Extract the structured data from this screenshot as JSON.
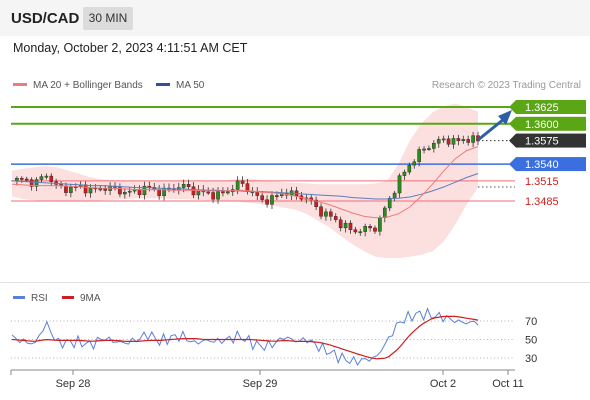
{
  "header": {
    "symbol": "USD/CAD",
    "interval": "30 MIN"
  },
  "datetime": "Monday, October 2, 2023 4:11:51 AM CET",
  "legend": {
    "ma20": "MA 20 + Bollinger Bands",
    "ma50": "MA 50",
    "credit": "Research © 2023 Trading Central"
  },
  "rsi_legend": {
    "rsi": "RSI",
    "ma": "9MA"
  },
  "colors": {
    "resistance": "#5ba614",
    "support": "#f06e78",
    "pivot": "#3b6fe0",
    "current": "#333333",
    "candle_up": "#2e8b1e",
    "candle_down": "#cc2020",
    "ma20": "#f07a7a",
    "ma50": "#5b7fbf",
    "bollinger_fill": "#fbd4d4",
    "arrow": "#2e5fa5",
    "rsi": "#5b7fdb",
    "rsi_ma": "#cc1f1f"
  },
  "chart_data": [
    {
      "type": "candlestick",
      "title": "USD/CAD",
      "x_labels": [
        "Sep 28",
        "Sep 29",
        "Oct 2",
        "Oct 11"
      ],
      "levels": [
        {
          "label": "1.3625",
          "value": 1.3625,
          "kind": "resistance"
        },
        {
          "label": "1.3600",
          "value": 1.36,
          "kind": "resistance"
        },
        {
          "label": "1.3575",
          "value": 1.3575,
          "kind": "current"
        },
        {
          "label": "1.3540",
          "value": 1.354,
          "kind": "pivot"
        },
        {
          "label": "1.3515",
          "value": 1.3515,
          "kind": "support"
        },
        {
          "label": "1.3485",
          "value": 1.3485,
          "kind": "support"
        }
      ],
      "price_path": [
        1.3515,
        1.3517,
        1.3511,
        1.3525,
        1.3505,
        1.3503,
        1.3507,
        1.35,
        1.3505,
        1.3503,
        1.3497,
        1.35,
        1.3505,
        1.3498,
        1.3503,
        1.3508,
        1.35,
        1.3497,
        1.3493,
        1.35,
        1.3513,
        1.35,
        1.3485,
        1.3489,
        1.35,
        1.3492,
        1.349,
        1.347,
        1.3462,
        1.345,
        1.344,
        1.3443,
        1.3445,
        1.348,
        1.3515,
        1.354,
        1.356,
        1.357,
        1.3577,
        1.3573,
        1.3578,
        1.3575
      ],
      "ma20": [
        1.351,
        1.3509,
        1.3508,
        1.3508,
        1.3508,
        1.3507,
        1.3506,
        1.3505,
        1.3504,
        1.3504,
        1.3503,
        1.3502,
        1.3502,
        1.3502,
        1.3501,
        1.3501,
        1.3501,
        1.35,
        1.35,
        1.35,
        1.3501,
        1.35,
        1.3498,
        1.3497,
        1.3495,
        1.3492,
        1.3488,
        1.3484,
        1.3479,
        1.3473,
        1.3467,
        1.3462,
        1.346,
        1.3461,
        1.3466,
        1.3476,
        1.3492,
        1.351,
        1.353,
        1.3548,
        1.356,
        1.3566
      ],
      "ma50": [
        1.3515,
        1.3514,
        1.3513,
        1.3512,
        1.3511,
        1.351,
        1.3509,
        1.3508,
        1.3508,
        1.3507,
        1.3506,
        1.3505,
        1.3505,
        1.3504,
        1.3503,
        1.3503,
        1.3502,
        1.3501,
        1.3501,
        1.35,
        1.35,
        1.3499,
        1.3499,
        1.3498,
        1.3497,
        1.3496,
        1.3495,
        1.3494,
        1.3493,
        1.3492,
        1.349,
        1.3489,
        1.3488,
        1.3488,
        1.3489,
        1.3491,
        1.3495,
        1.35,
        1.3506,
        1.3513,
        1.352,
        1.3526
      ],
      "bollinger_upper": [
        1.353,
        1.3533,
        1.3535,
        1.3537,
        1.3535,
        1.353,
        1.3525,
        1.352,
        1.3517,
        1.3516,
        1.3515,
        1.3515,
        1.3515,
        1.3515,
        1.3515,
        1.3515,
        1.3515,
        1.3515,
        1.3515,
        1.3516,
        1.3518,
        1.3518,
        1.3516,
        1.3515,
        1.3513,
        1.3512,
        1.3511,
        1.351,
        1.351,
        1.351,
        1.351,
        1.351,
        1.3511,
        1.3515,
        1.354,
        1.3575,
        1.36,
        1.3617,
        1.3626,
        1.363,
        1.3625,
        1.3618
      ],
      "bollinger_lower": [
        1.3492,
        1.3488,
        1.3486,
        1.3485,
        1.3484,
        1.3484,
        1.3484,
        1.3485,
        1.3486,
        1.3487,
        1.3488,
        1.3489,
        1.3489,
        1.3489,
        1.3488,
        1.3488,
        1.3487,
        1.3486,
        1.3486,
        1.3485,
        1.3484,
        1.3482,
        1.348,
        1.3478,
        1.3475,
        1.3472,
        1.3465,
        1.3455,
        1.3445,
        1.3432,
        1.342,
        1.341,
        1.3402,
        1.34,
        1.34,
        1.3402,
        1.3405,
        1.341,
        1.3425,
        1.345,
        1.348,
        1.3505
      ]
    },
    {
      "type": "line",
      "title": "RSI",
      "yticks": [
        70,
        50,
        30
      ],
      "ylim": [
        15,
        85
      ],
      "series": [
        {
          "name": "RSI",
          "values": [
            52,
            48,
            45,
            68,
            46,
            47,
            47,
            44,
            52,
            48,
            46,
            50,
            56,
            48,
            52,
            54,
            46,
            49,
            48,
            50,
            54,
            47,
            42,
            45,
            53,
            48,
            50,
            42,
            36,
            30,
            26,
            28,
            30,
            48,
            68,
            75,
            78,
            76,
            74,
            70,
            68,
            69
          ]
        },
        {
          "name": "9MA",
          "values": [
            50,
            49,
            48,
            50,
            49,
            49,
            49,
            48,
            49,
            49,
            48,
            48,
            49,
            49,
            50,
            51,
            51,
            50,
            50,
            50,
            50,
            50,
            49,
            48,
            49,
            48,
            48,
            47,
            44,
            40,
            36,
            32,
            29,
            30,
            40,
            55,
            66,
            73,
            75,
            75,
            73,
            71
          ]
        }
      ]
    }
  ]
}
